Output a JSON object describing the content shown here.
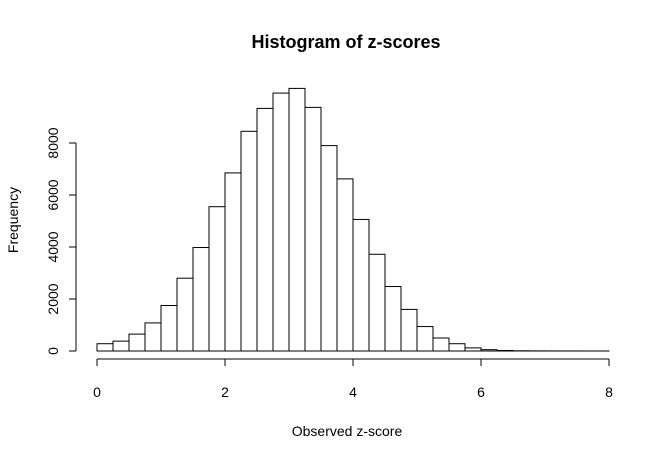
{
  "chart_data": {
    "type": "bar",
    "title": "Histogram of z-scores",
    "xlabel": "Observed z-score",
    "ylabel": "Frequency",
    "xlim": [
      0,
      8
    ],
    "ylim": [
      0,
      10000
    ],
    "x_ticks": [
      0,
      2,
      4,
      6,
      8
    ],
    "y_ticks": [
      0,
      2000,
      4000,
      6000,
      8000
    ],
    "bin_width": 0.25,
    "bins_start": [
      0,
      0.25,
      0.5,
      0.75,
      1.0,
      1.25,
      1.5,
      1.75,
      2.0,
      2.25,
      2.5,
      2.75,
      3.0,
      3.25,
      3.5,
      3.75,
      4.0,
      4.25,
      4.5,
      4.75,
      5.0,
      5.25,
      5.5,
      5.75,
      6.0,
      6.25,
      6.5,
      6.75,
      7.0,
      7.25,
      7.5,
      7.75
    ],
    "values": [
      280,
      380,
      650,
      1080,
      1750,
      2800,
      3980,
      5550,
      6850,
      8450,
      9330,
      9920,
      10100,
      9370,
      7900,
      6620,
      5060,
      3720,
      2480,
      1600,
      940,
      500,
      280,
      120,
      50,
      20,
      8,
      5,
      3,
      2,
      1,
      1
    ],
    "grid": false,
    "legend": "none"
  }
}
